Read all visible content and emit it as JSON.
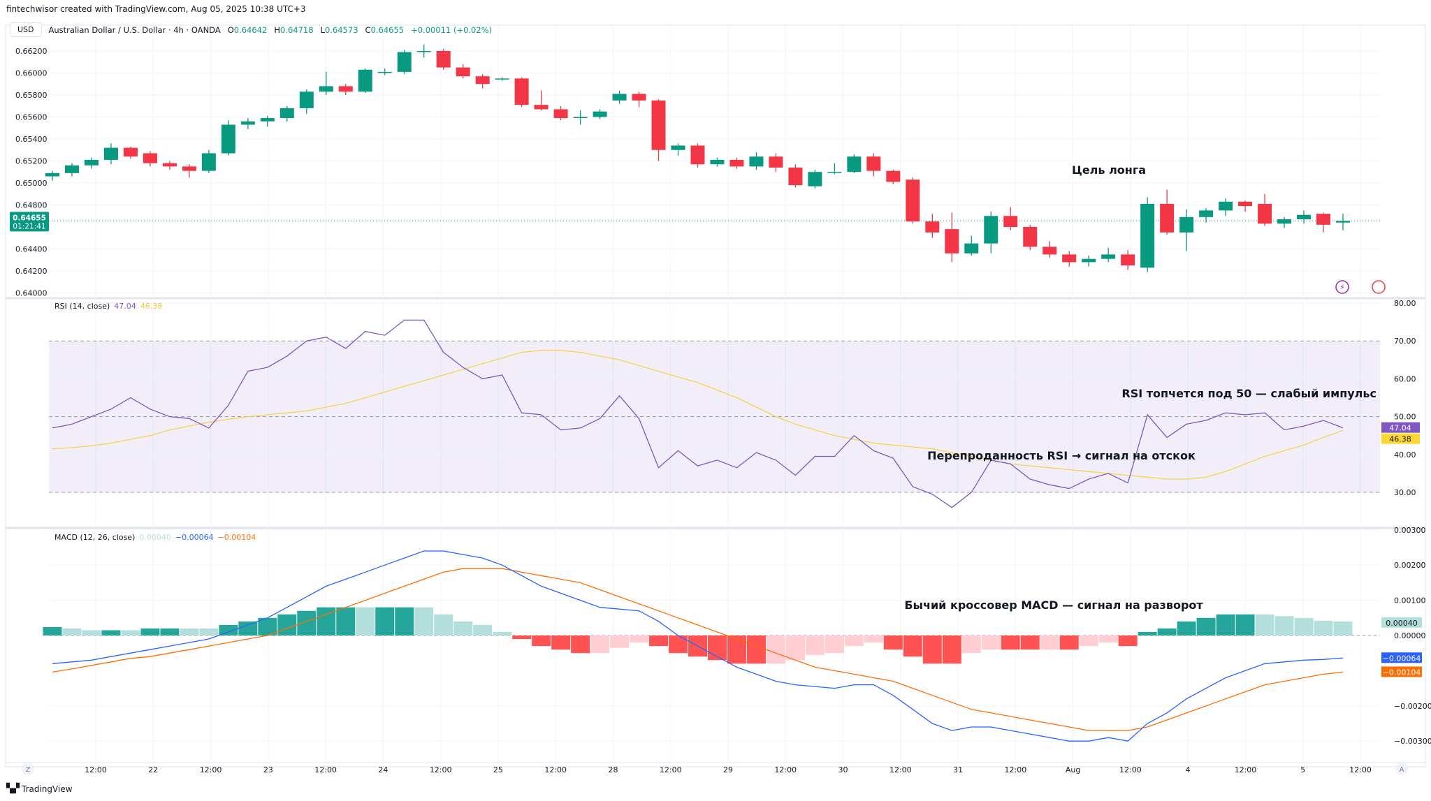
{
  "attribution": "fintechwisor created with TradingView.com, Aug 05, 2025 10:38 UTC+3",
  "header": {
    "currency": "USD",
    "symbol": "Australian Dollar / U.S. Dollar · 4h · OANDA",
    "open_label": "O",
    "open": "0.64642",
    "high_label": "H",
    "high": "0.64718",
    "low_label": "L",
    "low": "0.64573",
    "close_label": "C",
    "close": "0.64655",
    "change": "+0.00011 (+0.02%)"
  },
  "colors": {
    "up": "#089981",
    "down": "#f23645",
    "rsi": "#7e57c2",
    "rsi_ma": "#f5d34f",
    "macd": "#2962ff",
    "signal": "#ff6d00",
    "hist_up_strong": "#26a69a",
    "hist_up_weak": "#b2dfdb",
    "hist_down_strong": "#ff5252",
    "hist_down_weak": "#ffcdd2"
  },
  "price_axis": {
    "ticks": [
      "0.66200",
      "0.66000",
      "0.65800",
      "0.65600",
      "0.65400",
      "0.65200",
      "0.65000",
      "0.64800",
      "0.64400",
      "0.64200",
      "0.64000"
    ],
    "last_price": "0.64655",
    "countdown": "01:21:41"
  },
  "candles": [
    [
      0.6506,
      0.6511,
      0.6502,
      0.6509
    ],
    [
      0.6509,
      0.6518,
      0.6506,
      0.6516
    ],
    [
      0.6516,
      0.6523,
      0.6513,
      0.6521
    ],
    [
      0.6521,
      0.6536,
      0.6517,
      0.6532
    ],
    [
      0.6532,
      0.6533,
      0.6522,
      0.6524
    ],
    [
      0.6527,
      0.6529,
      0.6515,
      0.6518
    ],
    [
      0.6518,
      0.652,
      0.6512,
      0.6515
    ],
    [
      0.6515,
      0.6517,
      0.6505,
      0.6511
    ],
    [
      0.6511,
      0.653,
      0.6509,
      0.6527
    ],
    [
      0.6527,
      0.6557,
      0.6525,
      0.6553
    ],
    [
      0.6553,
      0.6559,
      0.6549,
      0.6556
    ],
    [
      0.6556,
      0.6561,
      0.6551,
      0.6559
    ],
    [
      0.6559,
      0.657,
      0.6556,
      0.6568
    ],
    [
      0.6568,
      0.6585,
      0.6563,
      0.6583
    ],
    [
      0.6583,
      0.6601,
      0.658,
      0.6588
    ],
    [
      0.6588,
      0.659,
      0.658,
      0.6583
    ],
    [
      0.6583,
      0.6604,
      0.6582,
      0.6603
    ],
    [
      0.6601,
      0.6604,
      0.6598,
      0.6601
    ],
    [
      0.6601,
      0.6621,
      0.6599,
      0.6619
    ],
    [
      0.6619,
      0.6626,
      0.6614,
      0.662
    ],
    [
      0.662,
      0.6622,
      0.6603,
      0.6605
    ],
    [
      0.6605,
      0.6608,
      0.6595,
      0.6597
    ],
    [
      0.6597,
      0.6599,
      0.6586,
      0.659
    ],
    [
      0.6595,
      0.6596,
      0.6593,
      0.6595
    ],
    [
      0.6595,
      0.6596,
      0.6569,
      0.6571
    ],
    [
      0.6571,
      0.6584,
      0.6566,
      0.6567
    ],
    [
      0.6567,
      0.657,
      0.6557,
      0.6559
    ],
    [
      0.656,
      0.6566,
      0.6553,
      0.656
    ],
    [
      0.656,
      0.6567,
      0.6558,
      0.6565
    ],
    [
      0.6575,
      0.6584,
      0.6572,
      0.6581
    ],
    [
      0.6581,
      0.6583,
      0.6569,
      0.6575
    ],
    [
      0.6575,
      0.6576,
      0.652,
      0.653
    ],
    [
      0.653,
      0.6536,
      0.6525,
      0.6534
    ],
    [
      0.6534,
      0.6536,
      0.6514,
      0.6517
    ],
    [
      0.6517,
      0.6523,
      0.6515,
      0.6521
    ],
    [
      0.6521,
      0.6523,
      0.6513,
      0.6515
    ],
    [
      0.6515,
      0.6528,
      0.6512,
      0.6524
    ],
    [
      0.6524,
      0.6527,
      0.651,
      0.6514
    ],
    [
      0.6514,
      0.6517,
      0.6496,
      0.6498
    ],
    [
      0.6497,
      0.6512,
      0.6495,
      0.651
    ],
    [
      0.651,
      0.6518,
      0.6508,
      0.651
    ],
    [
      0.651,
      0.6526,
      0.6509,
      0.6524
    ],
    [
      0.6524,
      0.6527,
      0.6506,
      0.6511
    ],
    [
      0.6511,
      0.6512,
      0.6499,
      0.6501
    ],
    [
      0.6503,
      0.6505,
      0.6463,
      0.6465
    ],
    [
      0.6465,
      0.6472,
      0.645,
      0.6455
    ],
    [
      0.6458,
      0.6473,
      0.6428,
      0.6436
    ],
    [
      0.6436,
      0.6452,
      0.6434,
      0.6445
    ],
    [
      0.6445,
      0.6474,
      0.6436,
      0.647
    ],
    [
      0.647,
      0.6478,
      0.6457,
      0.646
    ],
    [
      0.646,
      0.6462,
      0.6439,
      0.6442
    ],
    [
      0.6442,
      0.6447,
      0.6432,
      0.6435
    ],
    [
      0.6435,
      0.6438,
      0.6424,
      0.6428
    ],
    [
      0.6428,
      0.6434,
      0.6424,
      0.6431
    ],
    [
      0.6431,
      0.6441,
      0.6428,
      0.6435
    ],
    [
      0.6435,
      0.6439,
      0.6421,
      0.6425
    ],
    [
      0.6423,
      0.6487,
      0.6419,
      0.6481
    ],
    [
      0.6481,
      0.6494,
      0.6453,
      0.6455
    ],
    [
      0.6455,
      0.6476,
      0.6438,
      0.6469
    ],
    [
      0.6469,
      0.6477,
      0.6464,
      0.6475
    ],
    [
      0.6475,
      0.6486,
      0.647,
      0.6483
    ],
    [
      0.6483,
      0.6484,
      0.6474,
      0.6479
    ],
    [
      0.6481,
      0.649,
      0.6461,
      0.6463
    ],
    [
      0.6463,
      0.6469,
      0.6459,
      0.6467
    ],
    [
      0.6467,
      0.6475,
      0.6463,
      0.6471
    ],
    [
      0.6472,
      0.6473,
      0.6455,
      0.6462
    ],
    [
      0.6464,
      0.6472,
      0.6457,
      0.64655
    ]
  ],
  "time_axis": [
    "12:00",
    "22",
    "12:00",
    "23",
    "12:00",
    "24",
    "12:00",
    "25",
    "12:00",
    "28",
    "12:00",
    "29",
    "12:00",
    "30",
    "12:00",
    "31",
    "12:00",
    "Aug",
    "12:00",
    "4",
    "12:00",
    "5",
    "12:00"
  ],
  "rsi": {
    "title": "RSI (14, close)",
    "value": "47.04",
    "ma_value": "46.38",
    "axis_ticks": [
      "80.00",
      "70.00",
      "60.00",
      "50.00",
      "40.00",
      "30.00"
    ],
    "bands": [
      70,
      50,
      30
    ],
    "range": [
      80,
      30
    ],
    "values": [
      47,
      48,
      50,
      52,
      55,
      52,
      50,
      49.5,
      47,
      53,
      62,
      63,
      66,
      70,
      71,
      68,
      72.5,
      71.5,
      75.5,
      75.5,
      67,
      63,
      60,
      61,
      51,
      50.5,
      46.5,
      47,
      49.5,
      55.5,
      49.5,
      36.5,
      41,
      37,
      38.5,
      36.5,
      40.5,
      38.5,
      34.5,
      39.5,
      39.5,
      45,
      41,
      39,
      31.5,
      29.5,
      26,
      30,
      38.5,
      37.5,
      33.5,
      32,
      31,
      33.5,
      35,
      32.5,
      50.5,
      44.5,
      48,
      49,
      51,
      50.5,
      51,
      46.5,
      47.5,
      49,
      47.04
    ],
    "ma": [
      41.5,
      41.8,
      42.3,
      43,
      44,
      45,
      46.5,
      47.5,
      48.5,
      49.3,
      50,
      50.5,
      51,
      51.5,
      52.5,
      53.5,
      55,
      56.5,
      58,
      59.5,
      61,
      62.5,
      64,
      65.5,
      67,
      67.5,
      67.5,
      67,
      66,
      65,
      63.5,
      62,
      60.5,
      59,
      57,
      55,
      52.5,
      50,
      48,
      46.5,
      45,
      44,
      43,
      42.5,
      42,
      41.5,
      40.5,
      39.5,
      38.5,
      37.5,
      37,
      36.5,
      36,
      35.5,
      35,
      34.5,
      34,
      33.5,
      33.5,
      34,
      35.5,
      37.5,
      39.5,
      41,
      42.5,
      44.5,
      46.38
    ]
  },
  "macd": {
    "title": "MACD (12, 26, close)",
    "hist_value": "0.00040",
    "macd_value": "−0.00064",
    "signal_value": "−0.00104",
    "axis_ticks": [
      "0.00300",
      "0.00200",
      "0.00100",
      "0.00000",
      "−0.00200",
      "−0.00300"
    ],
    "range": [
      0.003,
      -0.003
    ],
    "macd_line": [
      -0.0008,
      -0.00075,
      -0.0007,
      -0.0006,
      -0.0005,
      -0.0004,
      -0.0003,
      -0.0002,
      -0.0001,
      0.0001,
      0.0003,
      0.0005,
      0.0008,
      0.0011,
      0.0014,
      0.0016,
      0.0018,
      0.002,
      0.0022,
      0.0024,
      0.0024,
      0.0023,
      0.0022,
      0.002,
      0.0017,
      0.0014,
      0.0012,
      0.001,
      0.0008,
      0.00075,
      0.0007,
      0.0004,
      0,
      -0.0003,
      -0.0006,
      -0.0009,
      -0.0011,
      -0.0013,
      -0.0014,
      -0.00145,
      -0.0015,
      -0.0014,
      -0.0014,
      -0.0017,
      -0.0021,
      -0.0025,
      -0.0027,
      -0.0026,
      -0.0026,
      -0.0027,
      -0.0028,
      -0.0029,
      -0.003,
      -0.003,
      -0.0029,
      -0.003,
      -0.0025,
      -0.0022,
      -0.0018,
      -0.0015,
      -0.0012,
      -0.001,
      -0.0008,
      -0.00075,
      -0.0007,
      -0.00068,
      -0.00064
    ],
    "signal_line": [
      -0.00104,
      -0.00095,
      -0.00085,
      -0.00075,
      -0.00065,
      -0.0006,
      -0.0005,
      -0.0004,
      -0.0003,
      -0.0002,
      -0.0001,
      0,
      0.0002,
      0.0004,
      0.0006,
      0.0008,
      0.001,
      0.0012,
      0.0014,
      0.0016,
      0.0018,
      0.0019,
      0.0019,
      0.0019,
      0.0018,
      0.0017,
      0.0016,
      0.0015,
      0.0013,
      0.0011,
      0.0009,
      0.0007,
      0.0005,
      0.0003,
      0.0001,
      -0.0001,
      -0.0003,
      -0.0005,
      -0.0007,
      -0.0009,
      -0.001,
      -0.0011,
      -0.0012,
      -0.0013,
      -0.0015,
      -0.0017,
      -0.0019,
      -0.0021,
      -0.0022,
      -0.0023,
      -0.0024,
      -0.0025,
      -0.0026,
      -0.0027,
      -0.0027,
      -0.0027,
      -0.0026,
      -0.0024,
      -0.0022,
      -0.002,
      -0.0018,
      -0.0016,
      -0.0014,
      -0.0013,
      -0.0012,
      -0.0011,
      -0.00104
    ]
  },
  "annotations": {
    "long_target": "Цель лонга",
    "rsi_weak": "RSI топчется под 50 — слабый импульс",
    "rsi_oversold": "Перепроданность RSI → сигнал на отскок",
    "macd_cross": "Бычий кроссовер MACD — сигнал на разворот"
  },
  "time_axis_buttons": {
    "left": "Z",
    "right": "A"
  },
  "footer": {
    "logo_text": "TradingView"
  },
  "icons": [
    "lightning-icon",
    "flag-icon",
    "tradingview-logo-icon"
  ]
}
